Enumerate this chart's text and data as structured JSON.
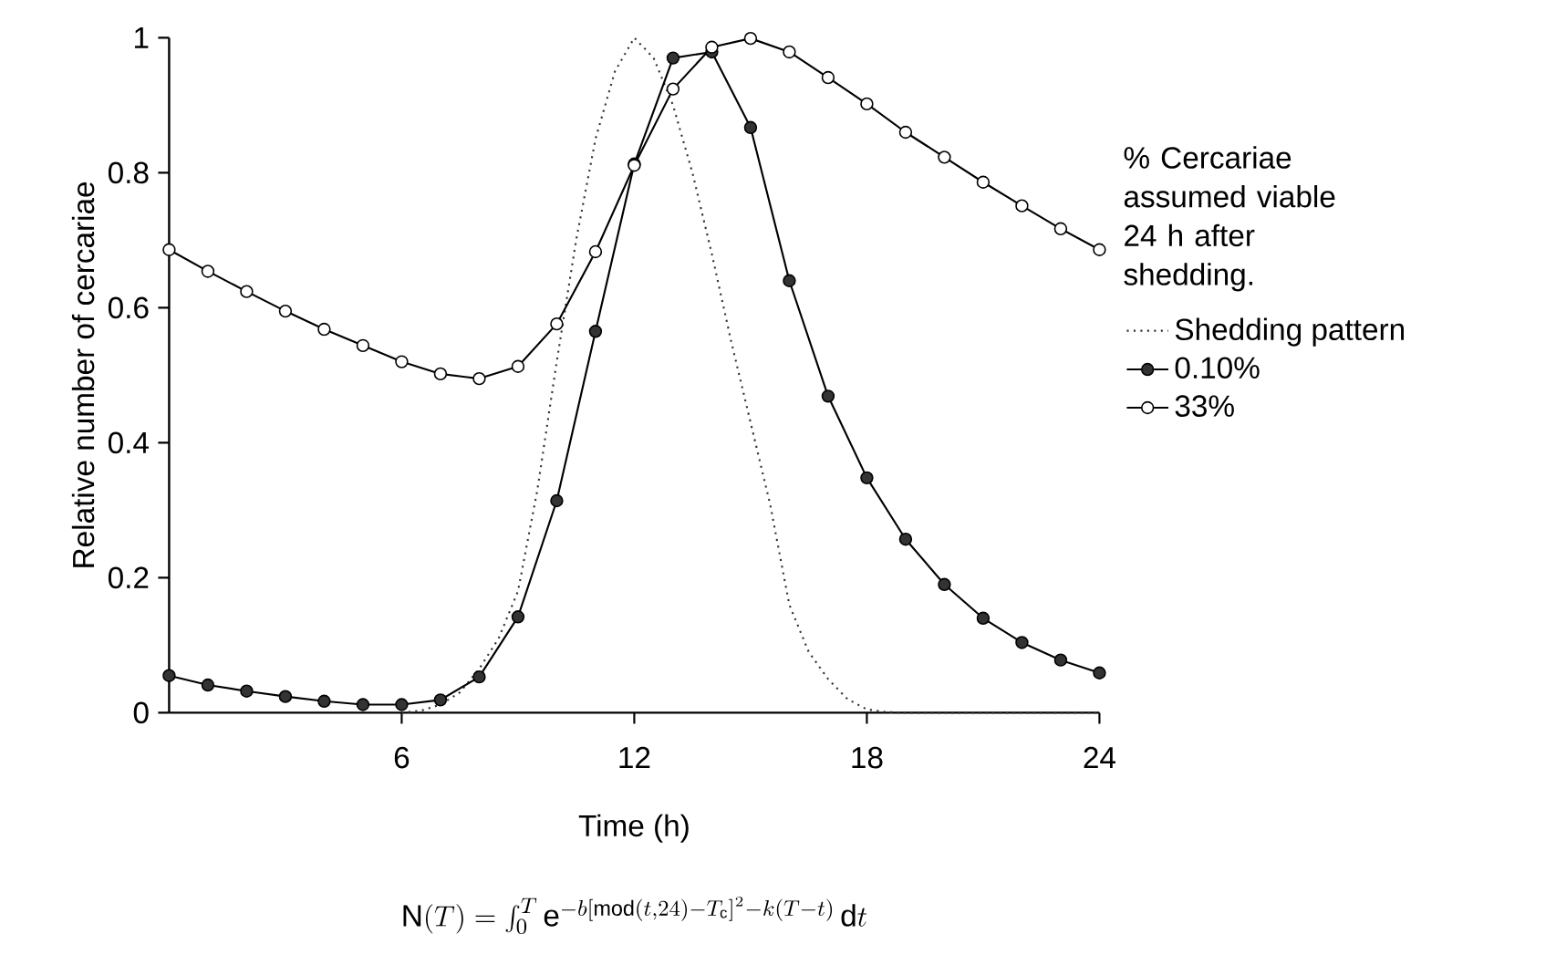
{
  "chart_data": {
    "type": "line",
    "xlabel": "Time (h)",
    "ylabel": "Relative number of cercariae",
    "legend_title": "% Cercariae assumed viable 24 h after shedding.",
    "x": [
      0,
      1,
      2,
      3,
      4,
      5,
      6,
      7,
      8,
      9,
      10,
      11,
      12,
      13,
      14,
      15,
      16,
      17,
      18,
      19,
      20,
      21,
      22,
      23,
      24
    ],
    "series": [
      {
        "name": "Shedding pattern",
        "color": "#333333",
        "line_style": "dotted",
        "marker": "none",
        "x": [
          6,
          6.5,
          7,
          7.5,
          8,
          8.5,
          9,
          9.5,
          10,
          10.5,
          11,
          11.5,
          12,
          12.5,
          13,
          13.5,
          14,
          14.5,
          15,
          15.5,
          16,
          16.5,
          17,
          17.5,
          18,
          18.5,
          19,
          24
        ],
        "values": [
          0,
          0.003,
          0.012,
          0.03,
          0.065,
          0.11,
          0.18,
          0.33,
          0.52,
          0.7,
          0.85,
          0.95,
          1.0,
          0.97,
          0.9,
          0.8,
          0.68,
          0.55,
          0.43,
          0.31,
          0.16,
          0.09,
          0.05,
          0.02,
          0.005,
          0.001,
          0,
          0
        ]
      },
      {
        "name": "0.10%",
        "color": "#333333",
        "line_style": "solid",
        "marker": "circle",
        "values": [
          0.055,
          0.041,
          0.032,
          0.024,
          0.017,
          0.012,
          0.012,
          0.019,
          0.053,
          0.142,
          0.314,
          0.565,
          0.813,
          0.97,
          0.979,
          0.867,
          0.64,
          0.469,
          0.348,
          0.257,
          0.19,
          0.14,
          0.104,
          0.078,
          0.059
        ]
      },
      {
        "name": "33%",
        "color": "#ffffff",
        "line_style": "solid",
        "marker": "circle",
        "values": [
          0.686,
          0.654,
          0.624,
          0.595,
          0.568,
          0.544,
          0.52,
          0.502,
          0.495,
          0.513,
          0.576,
          0.683,
          0.811,
          0.924,
          0.986,
          0.999,
          0.979,
          0.941,
          0.902,
          0.86,
          0.823,
          0.786,
          0.751,
          0.717,
          0.686
        ]
      }
    ],
    "xlim": [
      0,
      24
    ],
    "xticks": [
      6,
      12,
      18,
      24
    ],
    "ylim": [
      0,
      1
    ],
    "yticks": [
      0,
      0.2,
      0.4,
      0.6,
      0.8,
      1
    ],
    "legend": "right",
    "annotations": [
      "\\mathrm{N}(T) = \\int_0^T \\mathrm{e}^{-b[\\mathrm{mod}(t,24)-T_{\\mathrm{c}}]^2-k(T-t)}\\,\\mathrm{d}t"
    ]
  }
}
